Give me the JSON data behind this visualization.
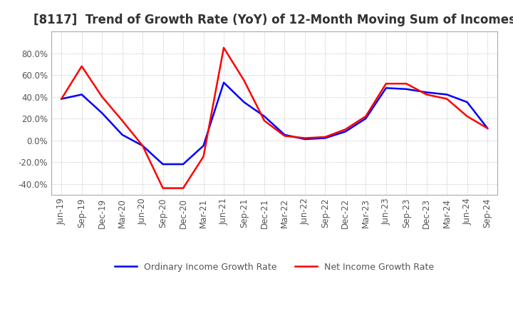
{
  "title": "[8117]  Trend of Growth Rate (YoY) of 12-Month Moving Sum of Incomes",
  "title_fontsize": 12,
  "background_color": "#ffffff",
  "grid_color": "#bbbbbb",
  "xlabels": [
    "Jun-19",
    "Sep-19",
    "Dec-19",
    "Mar-20",
    "Jun-20",
    "Sep-20",
    "Dec-20",
    "Mar-21",
    "Jun-21",
    "Sep-21",
    "Dec-21",
    "Mar-22",
    "Jun-22",
    "Sep-22",
    "Dec-22",
    "Mar-23",
    "Jun-23",
    "Sep-23",
    "Dec-23",
    "Mar-24",
    "Jun-24",
    "Sep-24"
  ],
  "ordinary_income": [
    38.0,
    42.0,
    25.0,
    5.0,
    -5.0,
    -22.0,
    -22.0,
    -5.0,
    53.0,
    35.0,
    22.0,
    5.0,
    1.0,
    2.0,
    8.0,
    20.0,
    48.0,
    47.0,
    44.0,
    42.0,
    35.0,
    11.0
  ],
  "net_income": [
    38.0,
    68.0,
    40.0,
    18.0,
    -5.0,
    -44.0,
    -44.0,
    -15.0,
    85.0,
    55.0,
    18.0,
    4.0,
    2.0,
    3.0,
    10.0,
    22.0,
    52.0,
    52.0,
    42.0,
    38.0,
    22.0,
    11.0
  ],
  "ordinary_color": "#0000ff",
  "net_color": "#ff0000",
  "ylim": [
    -50,
    100
  ],
  "yticks": [
    -40,
    -20,
    0,
    20,
    40,
    60,
    80
  ],
  "legend_labels": [
    "Ordinary Income Growth Rate",
    "Net Income Growth Rate"
  ],
  "line_width": 1.8,
  "tick_fontsize": 8.5
}
